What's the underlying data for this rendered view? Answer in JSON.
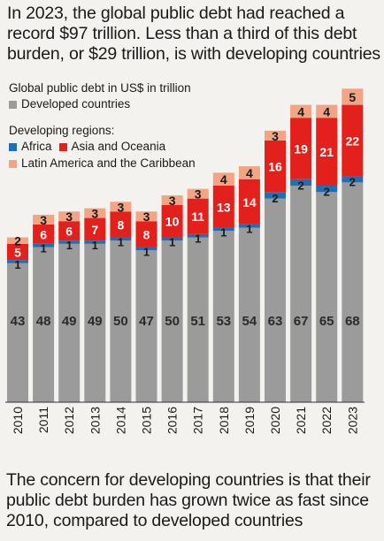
{
  "headline": "In 2023, the global public debt had reached a record $97 trillion. Less than a third of this debt burden, or $29 trillion, is with developing countries",
  "footer": "The concern for developing countries is that their public debt burden has grown twice as fast since 2010, compared to developed countries",
  "legend": {
    "unit_label": "Global public debt in US$ in trillion",
    "developed": "Developed countries",
    "developing_title": "Developing regions:",
    "africa": "Africa",
    "asia": "Asia and Oceania",
    "latam": "Latin America and the Caribbean"
  },
  "colors": {
    "developed": "#9b9b9b",
    "africa": "#1f6fb5",
    "asia": "#e3201b",
    "latam": "#f1a585",
    "background": "#f3f2ef"
  },
  "chart_data": {
    "type": "bar",
    "stacked": true,
    "categories": [
      "2010",
      "2011",
      "2012",
      "2013",
      "2014",
      "2015",
      "2016",
      "2017",
      "2018",
      "2019",
      "2020",
      "2021",
      "2022",
      "2023"
    ],
    "series": [
      {
        "name": "Developed countries",
        "values": [
          43,
          48,
          49,
          49,
          50,
          47,
          50,
          51,
          53,
          54,
          63,
          67,
          65,
          68
        ]
      },
      {
        "name": "Africa",
        "values": [
          1,
          1,
          1,
          1,
          1,
          1,
          1,
          1,
          1,
          1,
          2,
          2,
          2,
          2
        ]
      },
      {
        "name": "Asia and Oceania",
        "values": [
          5,
          6,
          6,
          7,
          8,
          8,
          10,
          11,
          13,
          14,
          16,
          19,
          21,
          22
        ]
      },
      {
        "name": "Latin America and the Caribbean",
        "values": [
          2,
          3,
          3,
          3,
          3,
          3,
          3,
          3,
          4,
          4,
          3,
          4,
          4,
          5
        ]
      }
    ],
    "ylim": [
      0,
      99
    ],
    "grid": false,
    "legend_position": "top-left"
  }
}
